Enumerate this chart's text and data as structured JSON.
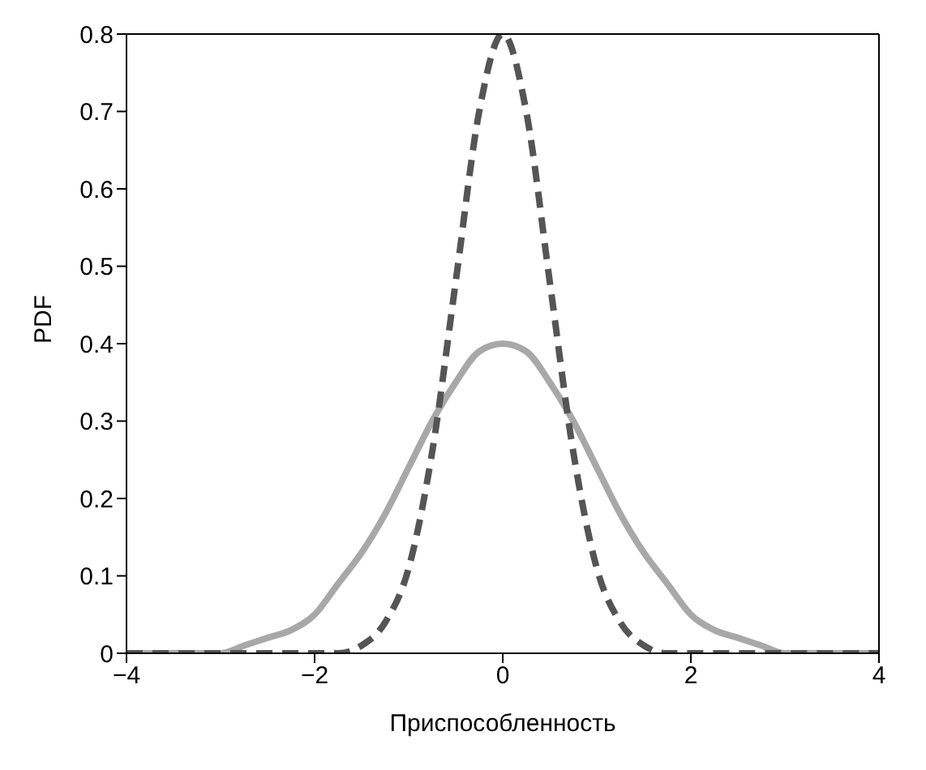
{
  "chart_data": {
    "type": "line",
    "xlabel": "Приспособленность",
    "ylabel": "PDF",
    "x": [
      -4,
      -3.75,
      -3.5,
      -3.25,
      -3,
      -2.75,
      -2.5,
      -2.25,
      -2,
      -1.75,
      -1.5,
      -1.25,
      -1,
      -0.75,
      -0.5,
      -0.25,
      0,
      0.25,
      0.5,
      0.75,
      1,
      1.25,
      1.5,
      1.75,
      2,
      2.25,
      2.5,
      2.75,
      3,
      3.25,
      3.5,
      3.75,
      4
    ],
    "series": [
      {
        "color": "#a8a8a8",
        "line_style": "solid",
        "values": [
          0,
          0,
          0,
          0,
          0,
          0.01,
          0.02,
          0.03,
          0.05,
          0.09,
          0.13,
          0.18,
          0.24,
          0.3,
          0.35,
          0.39,
          0.4,
          0.39,
          0.35,
          0.3,
          0.24,
          0.18,
          0.13,
          0.09,
          0.05,
          0.03,
          0.02,
          0.01,
          0,
          0,
          0,
          0,
          0
        ]
      },
      {
        "color": "#555555",
        "line_style": "dashed",
        "values": [
          0,
          0,
          0,
          0,
          0,
          0,
          0,
          0,
          0,
          0,
          0.01,
          0.04,
          0.11,
          0.26,
          0.48,
          0.7,
          0.8,
          0.7,
          0.48,
          0.26,
          0.11,
          0.04,
          0.01,
          0,
          0,
          0,
          0,
          0,
          0,
          0,
          0,
          0,
          0
        ]
      }
    ],
    "xlim": [
      -4,
      4
    ],
    "xticks": [
      {
        "value": -4,
        "label": "−4"
      },
      {
        "value": -2,
        "label": "−2"
      },
      0,
      2,
      4
    ],
    "ylim": [
      0,
      0.8
    ],
    "yticks": [
      0,
      0.1,
      0.2,
      0.3,
      0.4,
      0.5,
      0.6,
      0.7,
      0.8
    ],
    "grid": false,
    "marker": "none"
  }
}
